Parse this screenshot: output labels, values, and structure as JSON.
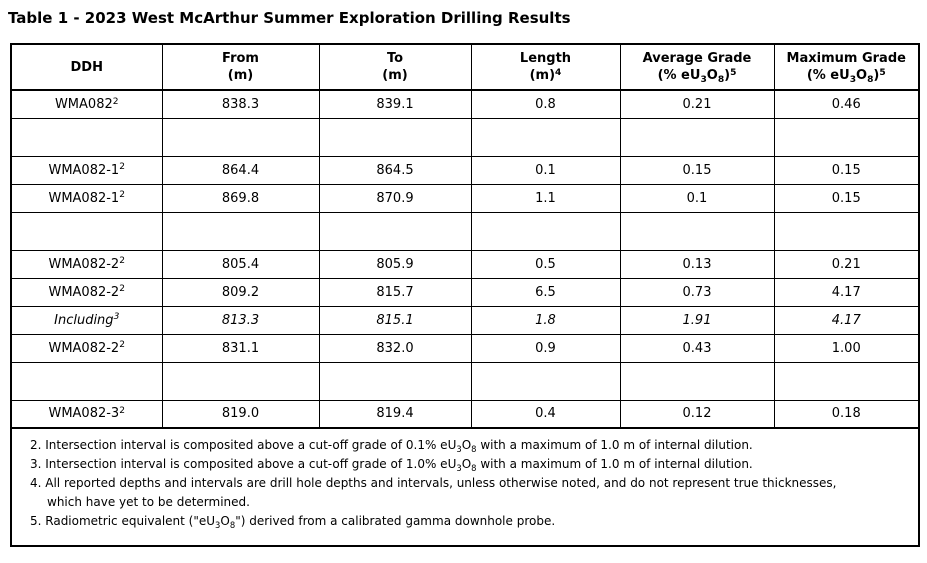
{
  "title": "Table 1 - 2023 West McArthur Summer Exploration Drilling Results",
  "colors": {
    "background": "#ffffff",
    "text": "#000000",
    "border": "#000000"
  },
  "table": {
    "headers": [
      "DDH",
      "From\n(m)",
      "To\n(m)",
      "Length\n(m)^4^",
      "Average Grade\n(% eU~3~O~8~)^5^",
      "Maximum Grade\n(% eU~3~O~8~)^5^"
    ],
    "rows": [
      {
        "type": "data",
        "italic": false,
        "cells": [
          "WMA082^2^",
          "838.3",
          "839.1",
          "0.8",
          "0.21",
          "0.46"
        ]
      },
      {
        "type": "spacer"
      },
      {
        "type": "data",
        "italic": false,
        "cells": [
          "WMA082-1^2^",
          "864.4",
          "864.5",
          "0.1",
          "0.15",
          "0.15"
        ]
      },
      {
        "type": "data",
        "italic": false,
        "cells": [
          "WMA082-1^2^",
          "869.8",
          "870.9",
          "1.1",
          "0.1",
          "0.15"
        ]
      },
      {
        "type": "spacer"
      },
      {
        "type": "data",
        "italic": false,
        "cells": [
          "WMA082-2^2^",
          "805.4",
          "805.9",
          "0.5",
          "0.13",
          "0.21"
        ]
      },
      {
        "type": "data",
        "italic": false,
        "cells": [
          "WMA082-2^2^",
          "809.2",
          "815.7",
          "6.5",
          "0.73",
          "4.17"
        ]
      },
      {
        "type": "data",
        "italic": true,
        "cells": [
          "Including^3^",
          "813.3",
          "815.1",
          "1.8",
          "1.91",
          "4.17"
        ]
      },
      {
        "type": "data",
        "italic": false,
        "cells": [
          "WMA082-2^2^",
          "831.1",
          "832.0",
          "0.9",
          "0.43",
          "1.00"
        ]
      },
      {
        "type": "spacer"
      },
      {
        "type": "data",
        "italic": false,
        "cells": [
          "WMA082-3^2^",
          "819.0",
          "819.4",
          "0.4",
          "0.12",
          "0.18"
        ]
      }
    ],
    "footnotes": [
      "2. Intersection interval is composited above a cut-off grade of 0.1% eU~3~O~8~ with a maximum of 1.0 m of internal dilution.",
      "3. Intersection interval is composited above a cut-off grade of 1.0% eU~3~O~8~ with a maximum of 1.0 m of internal dilution.",
      "4. All reported depths and intervals are drill hole depths and intervals, unless otherwise noted, and do not represent true thicknesses,\nwhich have yet to be determined.",
      "5. Radiometric equivalent (\"eU~3~O~8~\") derived from a calibrated gamma downhole probe."
    ]
  }
}
